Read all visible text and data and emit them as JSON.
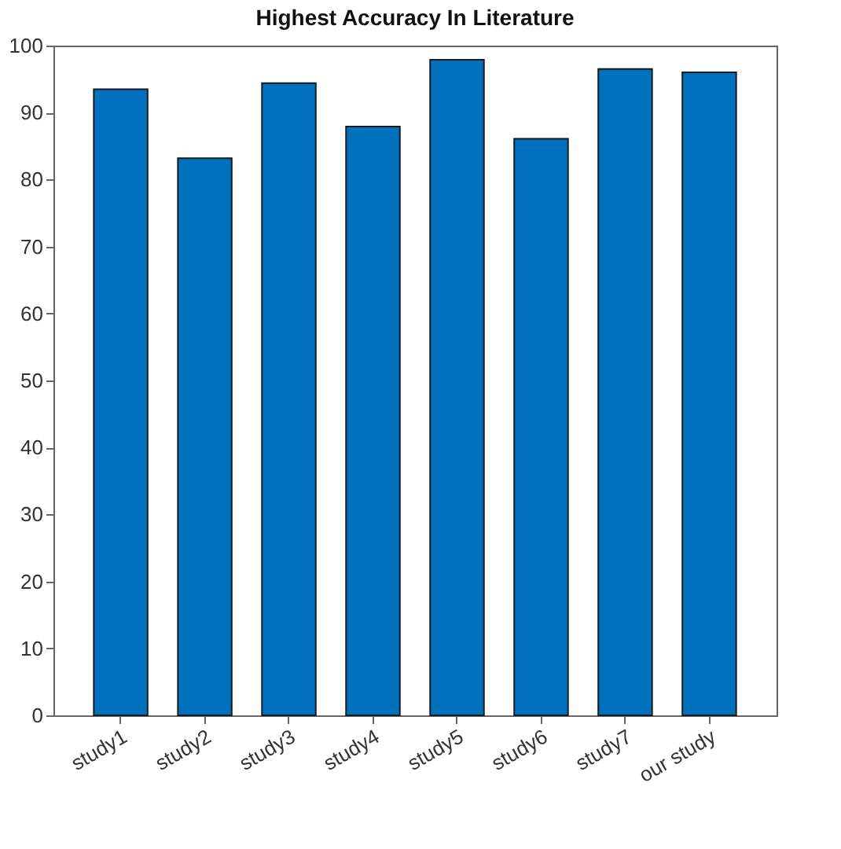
{
  "chart_data": {
    "type": "bar",
    "title": "Highest Accuracy In Literature",
    "categories": [
      "study1",
      "study2",
      "study3",
      "study4",
      "study5",
      "study6",
      "study7",
      "our study"
    ],
    "values": [
      93.5,
      83.2,
      94.4,
      87.9,
      97.9,
      86.1,
      96.5,
      96.0
    ],
    "color": "#0072bd",
    "ylim": [
      0,
      100
    ],
    "yticks": [
      0,
      10,
      20,
      30,
      40,
      50,
      60,
      70,
      80,
      90,
      100
    ],
    "grid": false
  }
}
